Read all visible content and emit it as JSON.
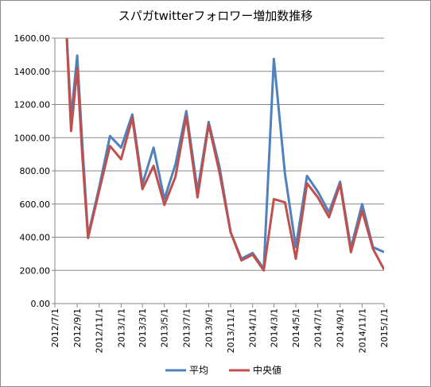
{
  "chart_data": {
    "type": "line",
    "title": "スパガtwitterフォロワー増加数推移",
    "xlabel": "",
    "ylabel": "",
    "ylim": [
      0,
      1600
    ],
    "yticks": [
      "0.00",
      "200.00",
      "400.00",
      "600.00",
      "800.00",
      "1000.00",
      "1200.00",
      "1400.00",
      "1600.00"
    ],
    "xlim": [
      "2012/7/1",
      "2015/1/1"
    ],
    "xticks": [
      "2012/7/1",
      "2012/9/1",
      "2012/11/1",
      "2013/1/1",
      "2013/3/1",
      "2013/5/1",
      "2013/7/1",
      "2013/9/1",
      "2013/11/1",
      "2014/1/1",
      "2014/3/1",
      "2014/5/1",
      "2014/7/1",
      "2014/9/1",
      "2014/11/1",
      "2015/1/1"
    ],
    "grid": "horizontal",
    "legend_position": "bottom",
    "series": [
      {
        "name": "平均",
        "color": "#4f81bd",
        "points": [
          [
            "2012/8/1",
            1700
          ],
          [
            "2012/8/15",
            1120
          ],
          [
            "2012/9/1",
            1495
          ],
          [
            "2012/9/15",
            970
          ],
          [
            "2012/10/1",
            410
          ],
          [
            "2012/11/1",
            700
          ],
          [
            "2012/12/1",
            1010
          ],
          [
            "2013/1/1",
            940
          ],
          [
            "2013/2/1",
            1140
          ],
          [
            "2013/3/1",
            720
          ],
          [
            "2013/4/1",
            940
          ],
          [
            "2013/5/1",
            630
          ],
          [
            "2013/6/1",
            840
          ],
          [
            "2013/7/1",
            1160
          ],
          [
            "2013/8/1",
            680
          ],
          [
            "2013/9/1",
            1095
          ],
          [
            "2013/10/1",
            825
          ],
          [
            "2013/11/1",
            430
          ],
          [
            "2013/12/1",
            270
          ],
          [
            "2014/1/1",
            305
          ],
          [
            "2014/2/1",
            210
          ],
          [
            "2014/3/1",
            1475
          ],
          [
            "2014/4/1",
            780
          ],
          [
            "2014/5/1",
            340
          ],
          [
            "2014/6/1",
            770
          ],
          [
            "2014/7/1",
            675
          ],
          [
            "2014/8/1",
            550
          ],
          [
            "2014/9/1",
            735
          ],
          [
            "2014/10/1",
            335
          ],
          [
            "2014/11/1",
            600
          ],
          [
            "2014/12/1",
            340
          ],
          [
            "2015/1/1",
            310
          ]
        ]
      },
      {
        "name": "中央値",
        "color": "#c0504d",
        "points": [
          [
            "2012/8/1",
            1700
          ],
          [
            "2012/8/15",
            1040
          ],
          [
            "2012/9/1",
            1420
          ],
          [
            "2012/9/15",
            900
          ],
          [
            "2012/10/1",
            395
          ],
          [
            "2012/11/1",
            680
          ],
          [
            "2012/12/1",
            950
          ],
          [
            "2013/1/1",
            870
          ],
          [
            "2013/2/1",
            1120
          ],
          [
            "2013/3/1",
            690
          ],
          [
            "2013/4/1",
            830
          ],
          [
            "2013/5/1",
            595
          ],
          [
            "2013/6/1",
            765
          ],
          [
            "2013/7/1",
            1130
          ],
          [
            "2013/8/1",
            640
          ],
          [
            "2013/9/1",
            1080
          ],
          [
            "2013/10/1",
            790
          ],
          [
            "2013/11/1",
            430
          ],
          [
            "2013/12/1",
            260
          ],
          [
            "2014/1/1",
            295
          ],
          [
            "2014/2/1",
            200
          ],
          [
            "2014/3/1",
            630
          ],
          [
            "2014/4/1",
            610
          ],
          [
            "2014/5/1",
            270
          ],
          [
            "2014/6/1",
            725
          ],
          [
            "2014/7/1",
            640
          ],
          [
            "2014/8/1",
            520
          ],
          [
            "2014/9/1",
            720
          ],
          [
            "2014/10/1",
            310
          ],
          [
            "2014/11/1",
            560
          ],
          [
            "2014/12/1",
            330
          ],
          [
            "2015/1/1",
            205
          ]
        ]
      }
    ]
  }
}
